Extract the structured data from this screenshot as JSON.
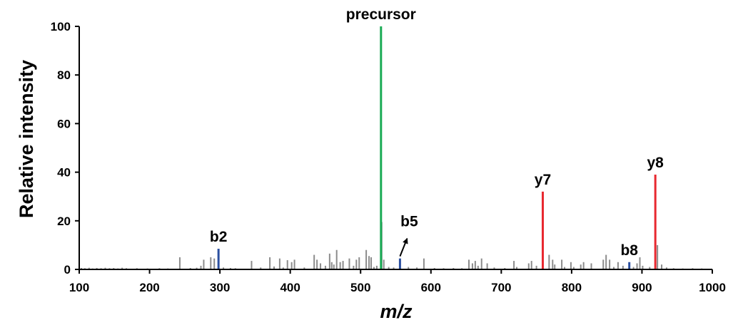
{
  "chart_data": {
    "type": "bar",
    "xlabel": "m/z",
    "ylabel": "Relative intensity",
    "xlim": [
      100,
      1000
    ],
    "ylim": [
      0,
      100
    ],
    "x_ticks": [
      100,
      200,
      300,
      400,
      500,
      600,
      700,
      800,
      900,
      1000
    ],
    "y_ticks": [
      0,
      20,
      40,
      60,
      80,
      100
    ],
    "grid": false,
    "legend": "none",
    "colors": {
      "background_peaks": "#8c8c8c",
      "precursor": "#1aab55",
      "b_ions": "#2b4fa0",
      "y_ions": "#e8282f",
      "axis": "#000000"
    },
    "series": [
      {
        "role": "background",
        "color": "#8c8c8c",
        "points": [
          [
            103,
            0.6
          ],
          [
            108,
            0.5
          ],
          [
            114,
            0.7
          ],
          [
            119,
            0.4
          ],
          [
            125,
            0.6
          ],
          [
            131,
            0.5
          ],
          [
            137,
            0.7
          ],
          [
            143,
            0.5
          ],
          [
            149,
            0.6
          ],
          [
            155,
            0.4
          ],
          [
            161,
            0.7
          ],
          [
            167,
            0.5
          ],
          [
            182,
            0.5
          ],
          [
            197,
            0.4
          ],
          [
            214,
            0.5
          ],
          [
            226,
            0.4
          ],
          [
            243,
            5.0
          ],
          [
            258,
            0.6
          ],
          [
            267,
            0.7
          ],
          [
            273,
            1.5
          ],
          [
            277,
            4.0
          ],
          [
            287,
            5.0
          ],
          [
            292,
            4.5
          ],
          [
            305,
            0.8
          ],
          [
            315,
            0.6
          ],
          [
            322,
            0.5
          ],
          [
            345,
            3.5
          ],
          [
            358,
            0.8
          ],
          [
            371,
            5.0
          ],
          [
            377,
            1.2
          ],
          [
            385,
            4.5
          ],
          [
            390,
            0.8
          ],
          [
            396,
            3.8
          ],
          [
            402,
            3.0
          ],
          [
            406,
            4.0
          ],
          [
            420,
            0.8
          ],
          [
            434,
            6.0
          ],
          [
            438,
            4.0
          ],
          [
            443,
            2.5
          ],
          [
            450,
            1.5
          ],
          [
            456,
            6.5
          ],
          [
            459,
            3.0
          ],
          [
            462,
            2.0
          ],
          [
            466,
            8.0
          ],
          [
            471,
            3.0
          ],
          [
            475,
            3.5
          ],
          [
            484,
            4.5
          ],
          [
            490,
            1.5
          ],
          [
            494,
            4.0
          ],
          [
            498,
            5.0
          ],
          [
            508,
            8.0
          ],
          [
            512,
            5.5
          ],
          [
            515,
            5.0
          ],
          [
            519,
            1.0
          ],
          [
            523,
            1.5
          ],
          [
            530,
            19.5
          ],
          [
            533,
            4.0
          ],
          [
            540,
            1.0
          ],
          [
            547,
            0.8
          ],
          [
            568,
            1.0
          ],
          [
            580,
            0.8
          ],
          [
            590,
            4.5
          ],
          [
            605,
            0.6
          ],
          [
            618,
            0.5
          ],
          [
            632,
            0.6
          ],
          [
            644,
            0.5
          ],
          [
            654,
            4.0
          ],
          [
            659,
            2.5
          ],
          [
            663,
            3.5
          ],
          [
            667,
            1.5
          ],
          [
            672,
            4.5
          ],
          [
            680,
            2.5
          ],
          [
            690,
            0.8
          ],
          [
            705,
            0.6
          ],
          [
            718,
            3.5
          ],
          [
            722,
            1.0
          ],
          [
            739,
            2.5
          ],
          [
            743,
            3.5
          ],
          [
            750,
            1.5
          ],
          [
            768,
            6.0
          ],
          [
            773,
            4.0
          ],
          [
            776,
            2.0
          ],
          [
            786,
            4.0
          ],
          [
            790,
            1.0
          ],
          [
            799,
            3.0
          ],
          [
            803,
            1.0
          ],
          [
            813,
            2.0
          ],
          [
            817,
            3.0
          ],
          [
            828,
            2.5
          ],
          [
            845,
            4.0
          ],
          [
            849,
            6.0
          ],
          [
            854,
            4.0
          ],
          [
            860,
            1.0
          ],
          [
            866,
            3.0
          ],
          [
            873,
            1.5
          ],
          [
            888,
            1.0
          ],
          [
            893,
            2.5
          ],
          [
            897,
            5.0
          ],
          [
            901,
            1.5
          ],
          [
            911,
            1.0
          ],
          [
            922,
            10.0
          ],
          [
            928,
            2.0
          ],
          [
            935,
            0.8
          ],
          [
            945,
            0.5
          ],
          [
            958,
            0.4
          ],
          [
            972,
            0.5
          ],
          [
            985,
            0.4
          ]
        ]
      },
      {
        "role": "precursor",
        "color": "#1aab55",
        "points": [
          [
            529,
            100
          ]
        ]
      },
      {
        "role": "b-ions",
        "color": "#2b4fa0",
        "points": [
          [
            298,
            8.5
          ],
          [
            556,
            4.5
          ],
          [
            882,
            3.0
          ]
        ]
      },
      {
        "role": "y-ions",
        "color": "#e8282f",
        "points": [
          [
            759,
            32
          ],
          [
            919,
            39
          ]
        ]
      }
    ],
    "annotations": [
      {
        "label": "precursor",
        "x": 529,
        "y": 100
      },
      {
        "label": "b2",
        "x": 298,
        "y": 8.5
      },
      {
        "label": "b5",
        "x": 556,
        "y": 4.5,
        "arrow": true
      },
      {
        "label": "y7",
        "x": 759,
        "y": 32
      },
      {
        "label": "b8",
        "x": 882,
        "y": 3.0
      },
      {
        "label": "y8",
        "x": 919,
        "y": 39
      }
    ]
  }
}
